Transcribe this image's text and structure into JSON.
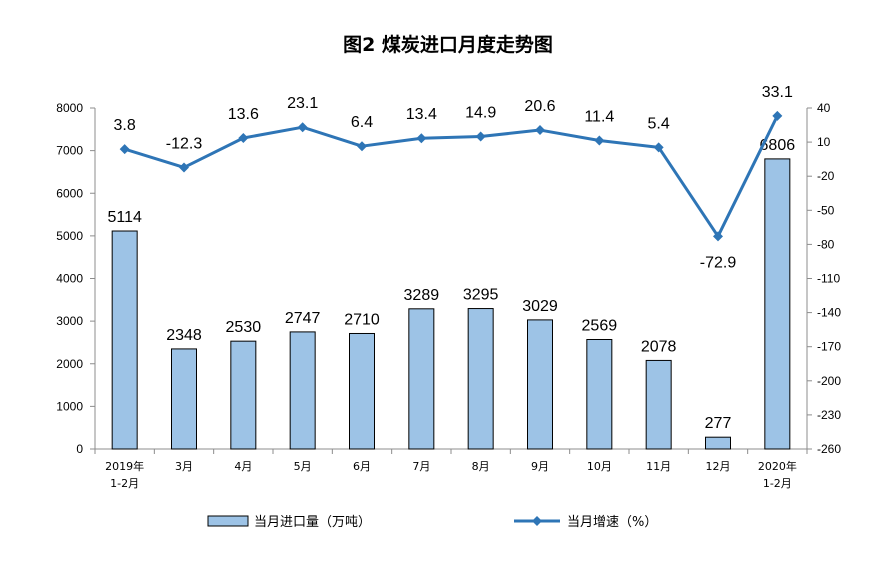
{
  "chart_data": {
    "type": "bar+line",
    "title": "图2 煤炭进口月度走势图",
    "categories": [
      [
        "2019年",
        "1-2月"
      ],
      [
        "3月"
      ],
      [
        "4月"
      ],
      [
        "5月"
      ],
      [
        "6月"
      ],
      [
        "7月"
      ],
      [
        "8月"
      ],
      [
        "9月"
      ],
      [
        "10月"
      ],
      [
        "11月"
      ],
      [
        "12月"
      ],
      [
        "2020年",
        "1-2月"
      ]
    ],
    "series": [
      {
        "name": "当月进口量（万吨）",
        "type": "bar",
        "axis": "left",
        "color": "#9DC3E6",
        "values": [
          5114,
          2348,
          2530,
          2747,
          2710,
          3289,
          3295,
          3029,
          2569,
          2078,
          277,
          6806
        ],
        "labels": [
          "5114",
          "2348",
          "2530",
          "2747",
          "2710",
          "3289",
          "3295",
          "3029",
          "2569",
          "2078",
          "277",
          "6806"
        ]
      },
      {
        "name": "当月增速（%）",
        "type": "line",
        "axis": "right",
        "color": "#2E75B6",
        "values": [
          3.8,
          -12.3,
          13.6,
          23.1,
          6.4,
          13.4,
          14.9,
          20.6,
          11.4,
          5.4,
          -72.9,
          33.1
        ],
        "labels": [
          "3.8",
          "-12.3",
          "13.6",
          "23.1",
          "6.4",
          "13.4",
          "14.9",
          "20.6",
          "11.4",
          "5.4",
          "-72.9",
          "33.1"
        ]
      }
    ],
    "y_left": {
      "ylim": [
        0,
        8000
      ],
      "ticks": [
        "0",
        "1000",
        "2000",
        "3000",
        "4000",
        "5000",
        "6000",
        "7000",
        "8000"
      ]
    },
    "y_right": {
      "ylim": [
        -260,
        40
      ],
      "ticks": [
        "40",
        "10",
        "-20",
        "-50",
        "-80",
        "-110",
        "-140",
        "-170",
        "-200",
        "-230",
        "-260"
      ]
    },
    "legend_position": "bottom-center",
    "grid": false
  }
}
